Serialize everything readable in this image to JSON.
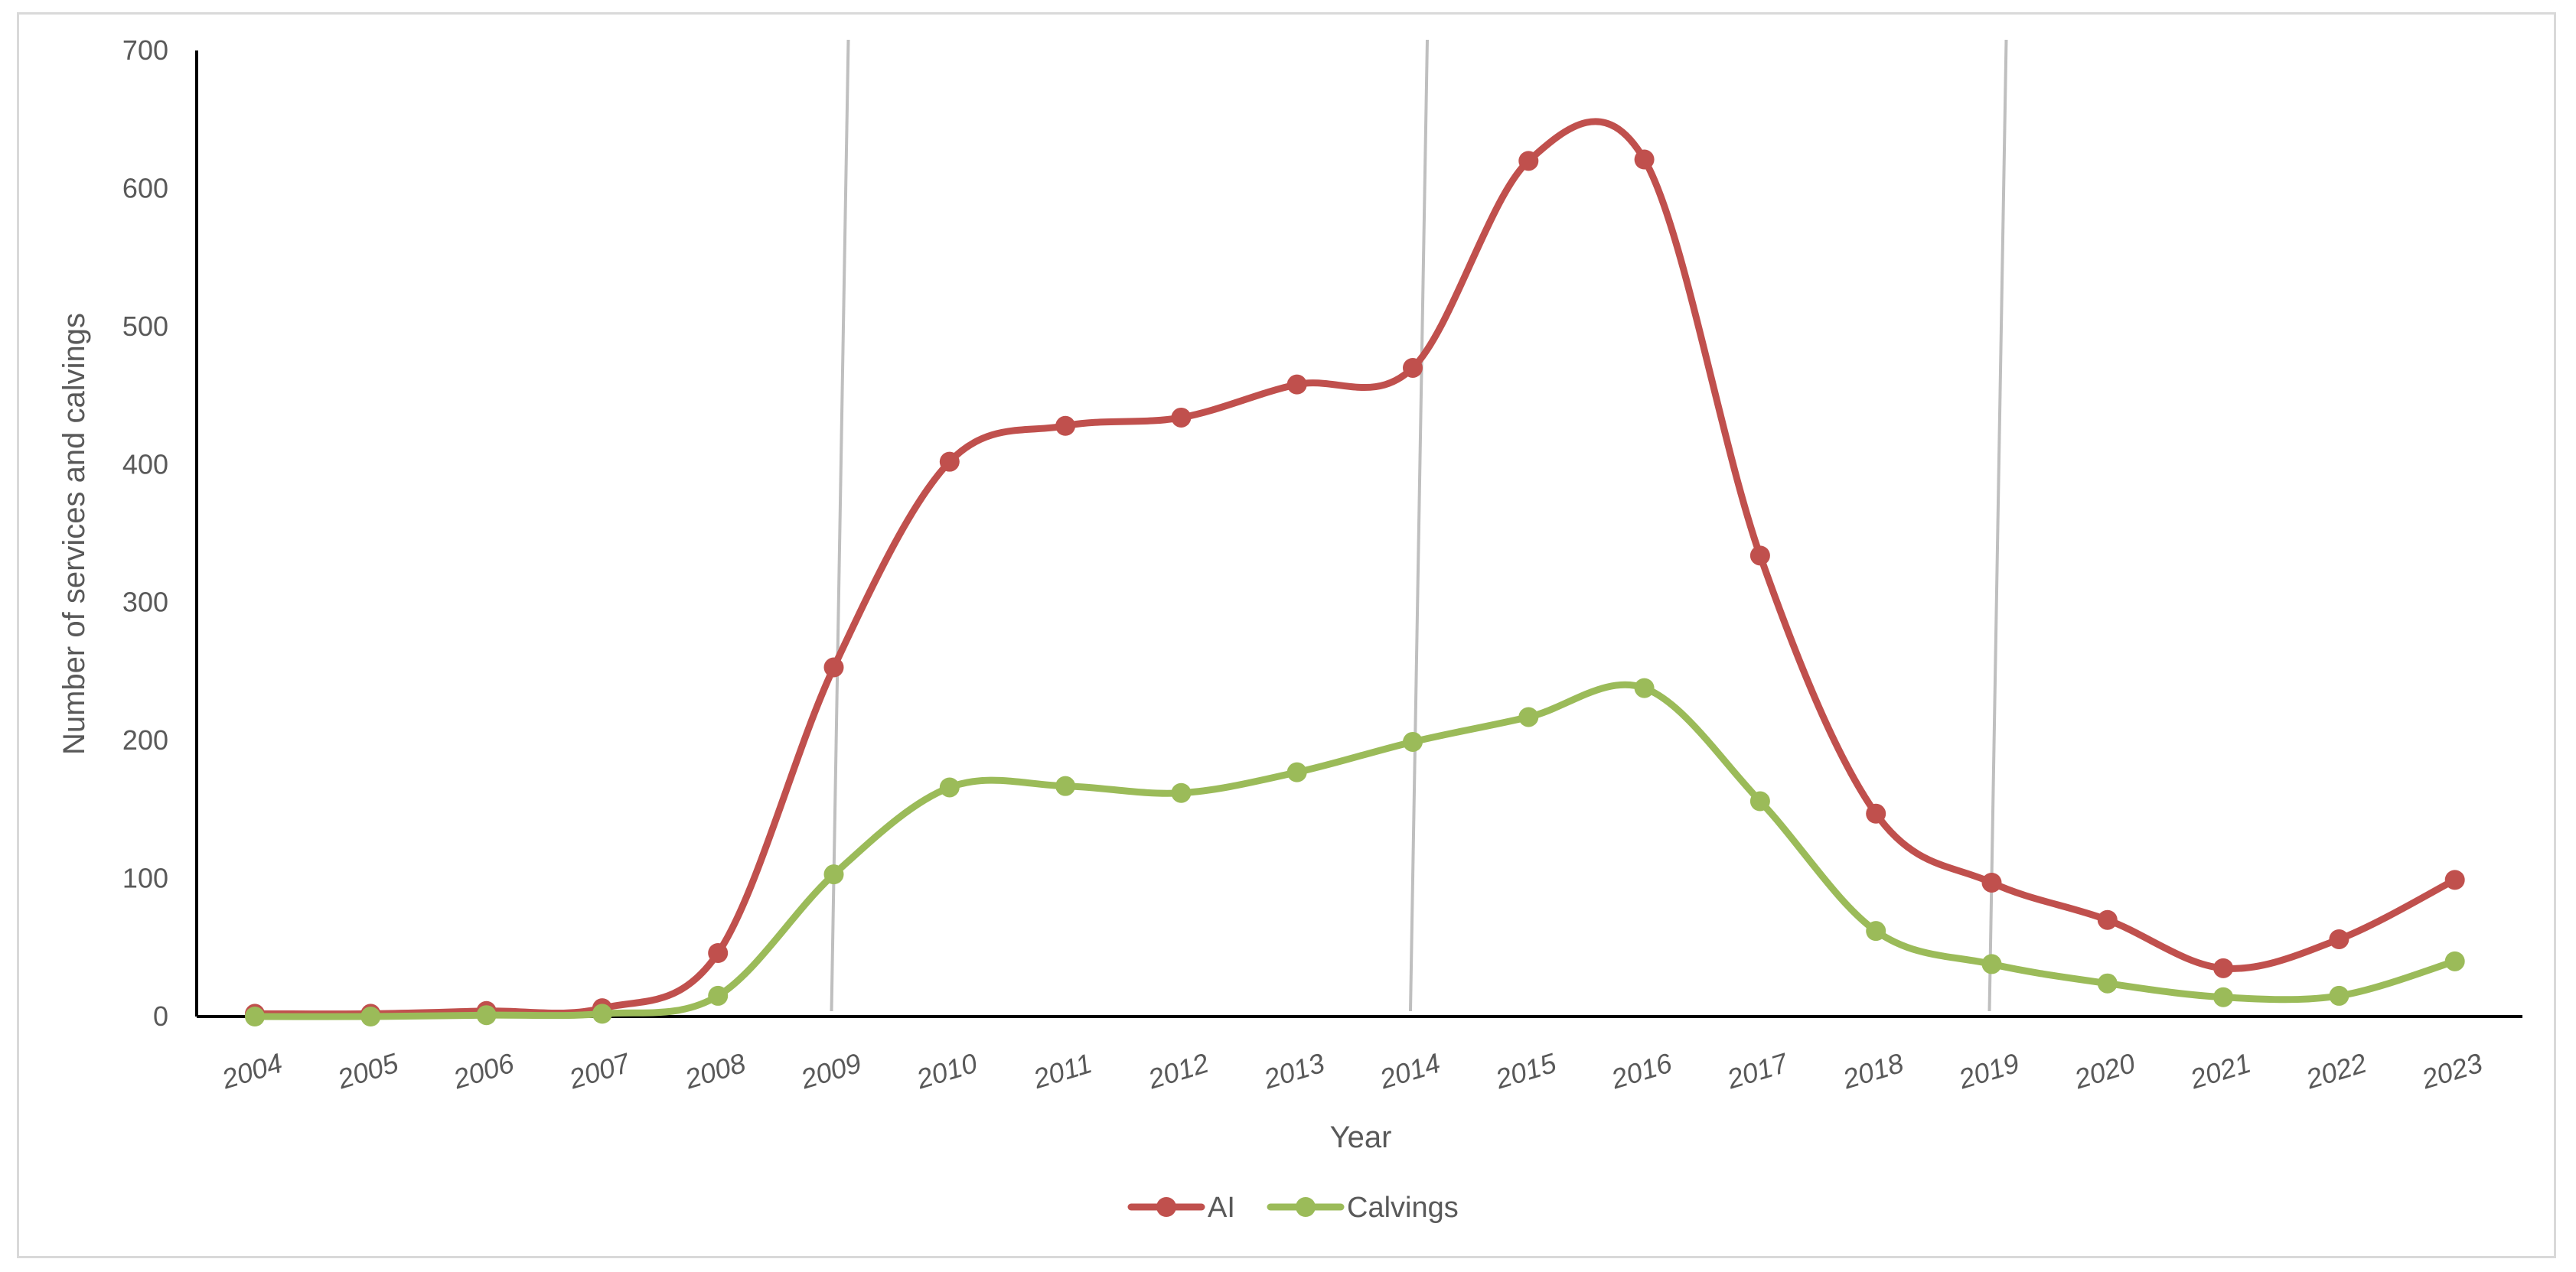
{
  "chart_data": {
    "type": "line",
    "title": "",
    "xlabel": "Year",
    "ylabel": "Number of services and calvings",
    "ylim": [
      0,
      700
    ],
    "yticks": [
      0,
      100,
      200,
      300,
      400,
      500,
      600,
      700
    ],
    "categories": [
      "2004",
      "2005",
      "2006",
      "2007",
      "2008",
      "2009",
      "2010",
      "2011",
      "2012",
      "2013",
      "2014",
      "2015",
      "2016",
      "2017",
      "2018",
      "2019",
      "2020",
      "2021",
      "2022",
      "2023"
    ],
    "series": [
      {
        "name": "AI",
        "color": "#c0504d",
        "values": [
          2,
          2,
          4,
          6,
          46,
          253,
          402,
          428,
          434,
          458,
          470,
          620,
          621,
          334,
          147,
          97,
          70,
          35,
          56,
          99
        ]
      },
      {
        "name": "Calvings",
        "color": "#9bbb59",
        "values": [
          0,
          0,
          1,
          2,
          15,
          103,
          166,
          167,
          162,
          177,
          199,
          217,
          238,
          156,
          62,
          38,
          24,
          14,
          15,
          40
        ]
      }
    ],
    "reference_lines": {
      "color": "#bfbfbf",
      "years": [
        "2009",
        "2014",
        "2019"
      ]
    },
    "smooth": true,
    "grid": false,
    "legend_position": "bottom-center"
  }
}
